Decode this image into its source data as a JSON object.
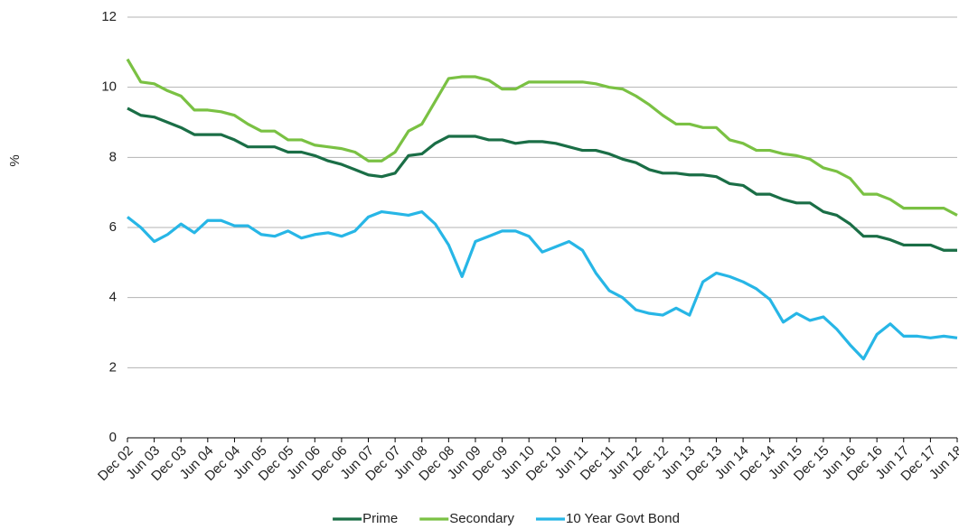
{
  "chart_data": {
    "type": "line",
    "y_label": "%",
    "categories": [
      "Dec 02",
      null,
      "Jun 03",
      null,
      "Dec 03",
      null,
      "Jun 04",
      null,
      "Dec 04",
      null,
      "Jun 05",
      null,
      "Dec 05",
      null,
      "Jun 06",
      null,
      "Dec 06",
      null,
      "Jun 07",
      null,
      "Dec 07",
      null,
      "Jun 08",
      null,
      "Dec 08",
      null,
      "Jun 09",
      null,
      "Dec 09",
      null,
      "Jun 10",
      null,
      "Dec 10",
      null,
      "Jun 11",
      null,
      "Dec 11",
      null,
      "Jun 12",
      null,
      "Dec 12",
      null,
      "Jun 13",
      null,
      "Dec 13",
      null,
      "Jun 14",
      null,
      "Dec 14",
      null,
      "Jun 15",
      null,
      "Dec 15",
      null,
      "Jun 16",
      null,
      "Dec 16",
      null,
      "Jun 17",
      null,
      "Dec 17",
      null,
      "Jun 18"
    ],
    "series": [
      {
        "name": "Prime",
        "color": "#1a6e46",
        "values": [
          9.4,
          9.2,
          9.15,
          9.0,
          8.85,
          8.65,
          8.65,
          8.65,
          8.5,
          8.3,
          8.3,
          8.3,
          8.15,
          8.15,
          8.05,
          7.9,
          7.8,
          7.65,
          7.5,
          7.45,
          7.55,
          8.05,
          8.1,
          8.4,
          8.6,
          8.6,
          8.6,
          8.5,
          8.5,
          8.4,
          8.45,
          8.45,
          8.4,
          8.3,
          8.2,
          8.2,
          8.1,
          7.95,
          7.85,
          7.65,
          7.55,
          7.55,
          7.5,
          7.5,
          7.45,
          7.25,
          7.2,
          6.95,
          6.95,
          6.8,
          6.7,
          6.7,
          6.45,
          6.35,
          6.1,
          5.75,
          5.75,
          5.65,
          5.5,
          5.5,
          5.5,
          5.35,
          5.35
        ]
      },
      {
        "name": "Secondary",
        "color": "#7ac143",
        "values": [
          10.8,
          10.15,
          10.1,
          9.9,
          9.75,
          9.35,
          9.35,
          9.3,
          9.2,
          8.95,
          8.75,
          8.75,
          8.5,
          8.5,
          8.35,
          8.3,
          8.25,
          8.15,
          7.9,
          7.9,
          8.15,
          8.75,
          8.95,
          9.6,
          10.25,
          10.3,
          10.3,
          10.2,
          9.95,
          9.95,
          10.15,
          10.15,
          10.15,
          10.15,
          10.15,
          10.1,
          10.0,
          9.95,
          9.75,
          9.5,
          9.2,
          8.95,
          8.95,
          8.85,
          8.85,
          8.5,
          8.4,
          8.2,
          8.2,
          8.1,
          8.05,
          7.95,
          7.7,
          7.6,
          7.4,
          6.95,
          6.95,
          6.8,
          6.55,
          6.55,
          6.55,
          6.55,
          6.35
        ]
      },
      {
        "name": "10 Year Govt Bond",
        "color": "#27b6e6",
        "values": [
          6.3,
          6.0,
          5.6,
          5.8,
          6.1,
          5.85,
          6.2,
          6.2,
          6.05,
          6.05,
          5.8,
          5.75,
          5.9,
          5.7,
          5.8,
          5.85,
          5.75,
          5.9,
          6.3,
          6.45,
          6.4,
          6.35,
          6.45,
          6.1,
          5.5,
          4.6,
          5.6,
          5.75,
          5.9,
          5.9,
          5.75,
          5.3,
          5.45,
          5.6,
          5.35,
          4.7,
          4.2,
          4.0,
          3.65,
          3.55,
          3.5,
          3.7,
          3.5,
          4.45,
          4.7,
          4.6,
          4.45,
          4.25,
          3.95,
          3.3,
          3.55,
          3.35,
          3.45,
          3.1,
          2.65,
          2.25,
          2.95,
          3.25,
          2.9,
          2.9,
          2.85,
          2.9,
          2.85
        ]
      }
    ],
    "ylim": [
      0,
      12
    ],
    "yticks": [
      0,
      2,
      4,
      6,
      8,
      10,
      12
    ],
    "grid": true,
    "legend": "bottom"
  }
}
